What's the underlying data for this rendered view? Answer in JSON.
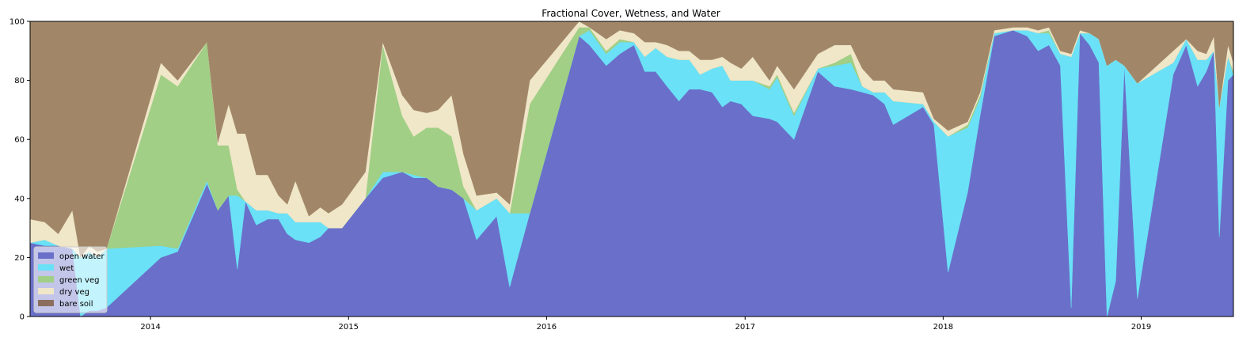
{
  "chart_data": {
    "type": "area",
    "stacked": true,
    "title": "Fractional Cover, Wetness, and Water",
    "xlabel": "",
    "ylabel": "",
    "xlim": [
      "2013-05-24",
      "2019-06-20"
    ],
    "ylim": [
      0,
      100
    ],
    "y_ticks": [
      0,
      20,
      40,
      60,
      80,
      100
    ],
    "x_ticks": [
      "2014",
      "2015",
      "2016",
      "2017",
      "2018",
      "2019"
    ],
    "x_tick_dates": [
      "2014-01-01",
      "2015-01-01",
      "2016-01-01",
      "2017-01-01",
      "2018-01-01",
      "2019-01-01"
    ],
    "grid": false,
    "legend_placement": "lower-left",
    "x": [
      "2013-05-24",
      "2013-06-20",
      "2013-07-15",
      "2013-08-10",
      "2013-08-25",
      "2013-09-10",
      "2013-09-25",
      "2013-10-12",
      "2014-01-20",
      "2014-02-20",
      "2014-04-15",
      "2014-05-05",
      "2014-05-25",
      "2014-06-10",
      "2014-06-25",
      "2014-07-15",
      "2014-08-05",
      "2014-08-25",
      "2014-09-10",
      "2014-09-25",
      "2014-10-20",
      "2014-11-10",
      "2014-11-25",
      "2014-12-20",
      "2015-02-01",
      "2015-03-05",
      "2015-04-10",
      "2015-05-01",
      "2015-05-25",
      "2015-06-15",
      "2015-07-10",
      "2015-08-01",
      "2015-08-25",
      "2015-10-01",
      "2015-10-25",
      "2015-12-01",
      "2016-03-01",
      "2016-03-20",
      "2016-04-20",
      "2016-05-15",
      "2016-06-10",
      "2016-06-30",
      "2016-07-20",
      "2016-08-10",
      "2016-09-01",
      "2016-09-20",
      "2016-10-10",
      "2016-11-01",
      "2016-11-20",
      "2016-12-05",
      "2016-12-25",
      "2017-01-15",
      "2017-02-15",
      "2017-03-01",
      "2017-04-01",
      "2017-05-15",
      "2017-06-15",
      "2017-07-15",
      "2017-08-05",
      "2017-08-25",
      "2017-09-15",
      "2017-10-01",
      "2017-11-25",
      "2017-12-15",
      "2018-01-10",
      "2018-02-15",
      "2018-03-10",
      "2018-04-05",
      "2018-05-10",
      "2018-06-05",
      "2018-06-25",
      "2018-07-15",
      "2018-08-05",
      "2018-08-25",
      "2018-09-10",
      "2018-09-28",
      "2018-10-15",
      "2018-10-30",
      "2018-11-15",
      "2018-12-01",
      "2018-12-25",
      "2019-03-01",
      "2019-03-25",
      "2019-04-15",
      "2019-05-01",
      "2019-05-15",
      "2019-05-25",
      "2019-06-10",
      "2019-06-20"
    ],
    "series": [
      {
        "name": "open water",
        "color": "#6a70c9",
        "values": [
          25,
          24,
          24,
          23,
          0,
          2,
          2,
          3,
          20,
          22,
          45,
          36,
          41,
          16,
          39,
          31,
          33,
          33,
          28,
          26,
          25,
          27,
          30,
          30,
          40,
          47,
          49,
          47,
          47,
          44,
          43,
          40,
          26,
          34,
          10,
          35,
          95,
          92,
          85,
          89,
          92,
          83,
          83,
          78,
          73,
          77,
          77,
          76,
          71,
          73,
          72,
          68,
          67,
          66,
          60,
          83,
          78,
          77,
          76,
          75,
          72,
          65,
          71,
          65,
          15,
          42,
          68,
          95,
          97,
          95,
          90,
          92,
          85,
          3,
          96,
          92,
          86,
          0,
          12,
          85,
          6,
          82,
          92,
          78,
          83,
          90,
          27,
          80,
          82
        ]
      },
      {
        "name": "wet",
        "color": "#6ae1f7",
        "values": [
          0,
          2,
          0,
          0,
          20,
          20,
          18,
          20,
          4,
          1,
          1,
          0,
          0,
          25,
          0,
          5,
          3,
          2,
          7,
          6,
          7,
          5,
          0,
          0,
          0,
          2,
          0,
          1,
          0,
          0,
          0,
          0,
          10,
          6,
          25,
          0,
          0,
          5,
          4,
          4,
          1,
          5,
          8,
          10,
          14,
          10,
          5,
          8,
          14,
          7,
          8,
          12,
          10,
          15,
          8,
          1,
          7,
          9,
          2,
          1,
          4,
          8,
          1,
          1,
          46,
          22,
          6,
          1,
          0,
          2,
          6,
          4,
          4,
          85,
          0,
          4,
          8,
          85,
          75,
          0,
          73,
          4,
          2,
          9,
          4,
          0,
          44,
          8,
          0
        ]
      },
      {
        "name": "green veg",
        "color": "#a0cf85",
        "values": [
          0,
          0,
          0,
          0,
          0,
          0,
          0,
          0,
          58,
          55,
          47,
          22,
          17,
          2,
          0,
          0,
          0,
          0,
          0,
          0,
          0,
          0,
          0,
          0,
          0,
          43,
          19,
          13,
          17,
          20,
          18,
          4,
          0,
          0,
          0,
          37,
          3,
          1,
          1,
          1,
          0,
          0,
          0,
          0,
          0,
          0,
          0,
          0,
          0,
          0,
          0,
          0,
          1,
          1,
          1,
          0,
          1,
          3,
          0,
          0,
          0,
          0,
          0,
          0,
          0,
          1,
          1,
          0,
          0,
          0,
          0,
          1,
          0,
          0,
          0,
          0,
          0,
          0,
          0,
          0,
          0,
          0,
          0,
          0,
          0,
          0,
          0,
          0,
          1
        ]
      },
      {
        "name": "dry veg",
        "color": "#f0e6c8",
        "values": [
          8,
          6,
          4,
          13,
          0,
          2,
          2,
          0,
          4,
          2,
          0,
          1,
          14,
          19,
          23,
          12,
          12,
          6,
          3,
          14,
          2,
          5,
          5,
          8,
          9,
          1,
          7,
          9,
          5,
          6,
          14,
          11,
          5,
          2,
          3,
          8,
          2,
          0,
          4,
          3,
          3,
          5,
          2,
          4,
          3,
          3,
          5,
          3,
          3,
          6,
          4,
          8,
          2,
          3,
          8,
          5,
          6,
          3,
          6,
          4,
          4,
          4,
          4,
          1,
          2,
          1,
          1,
          1,
          1,
          1,
          1,
          1,
          1,
          1,
          1,
          0,
          0,
          0,
          0,
          0,
          0,
          4,
          0,
          3,
          2,
          5,
          0,
          4,
          3
        ]
      }
    ],
    "remainder_series": {
      "name": "bare soil",
      "color": "#a18768",
      "legend_color": "#8c6e5e"
    }
  }
}
